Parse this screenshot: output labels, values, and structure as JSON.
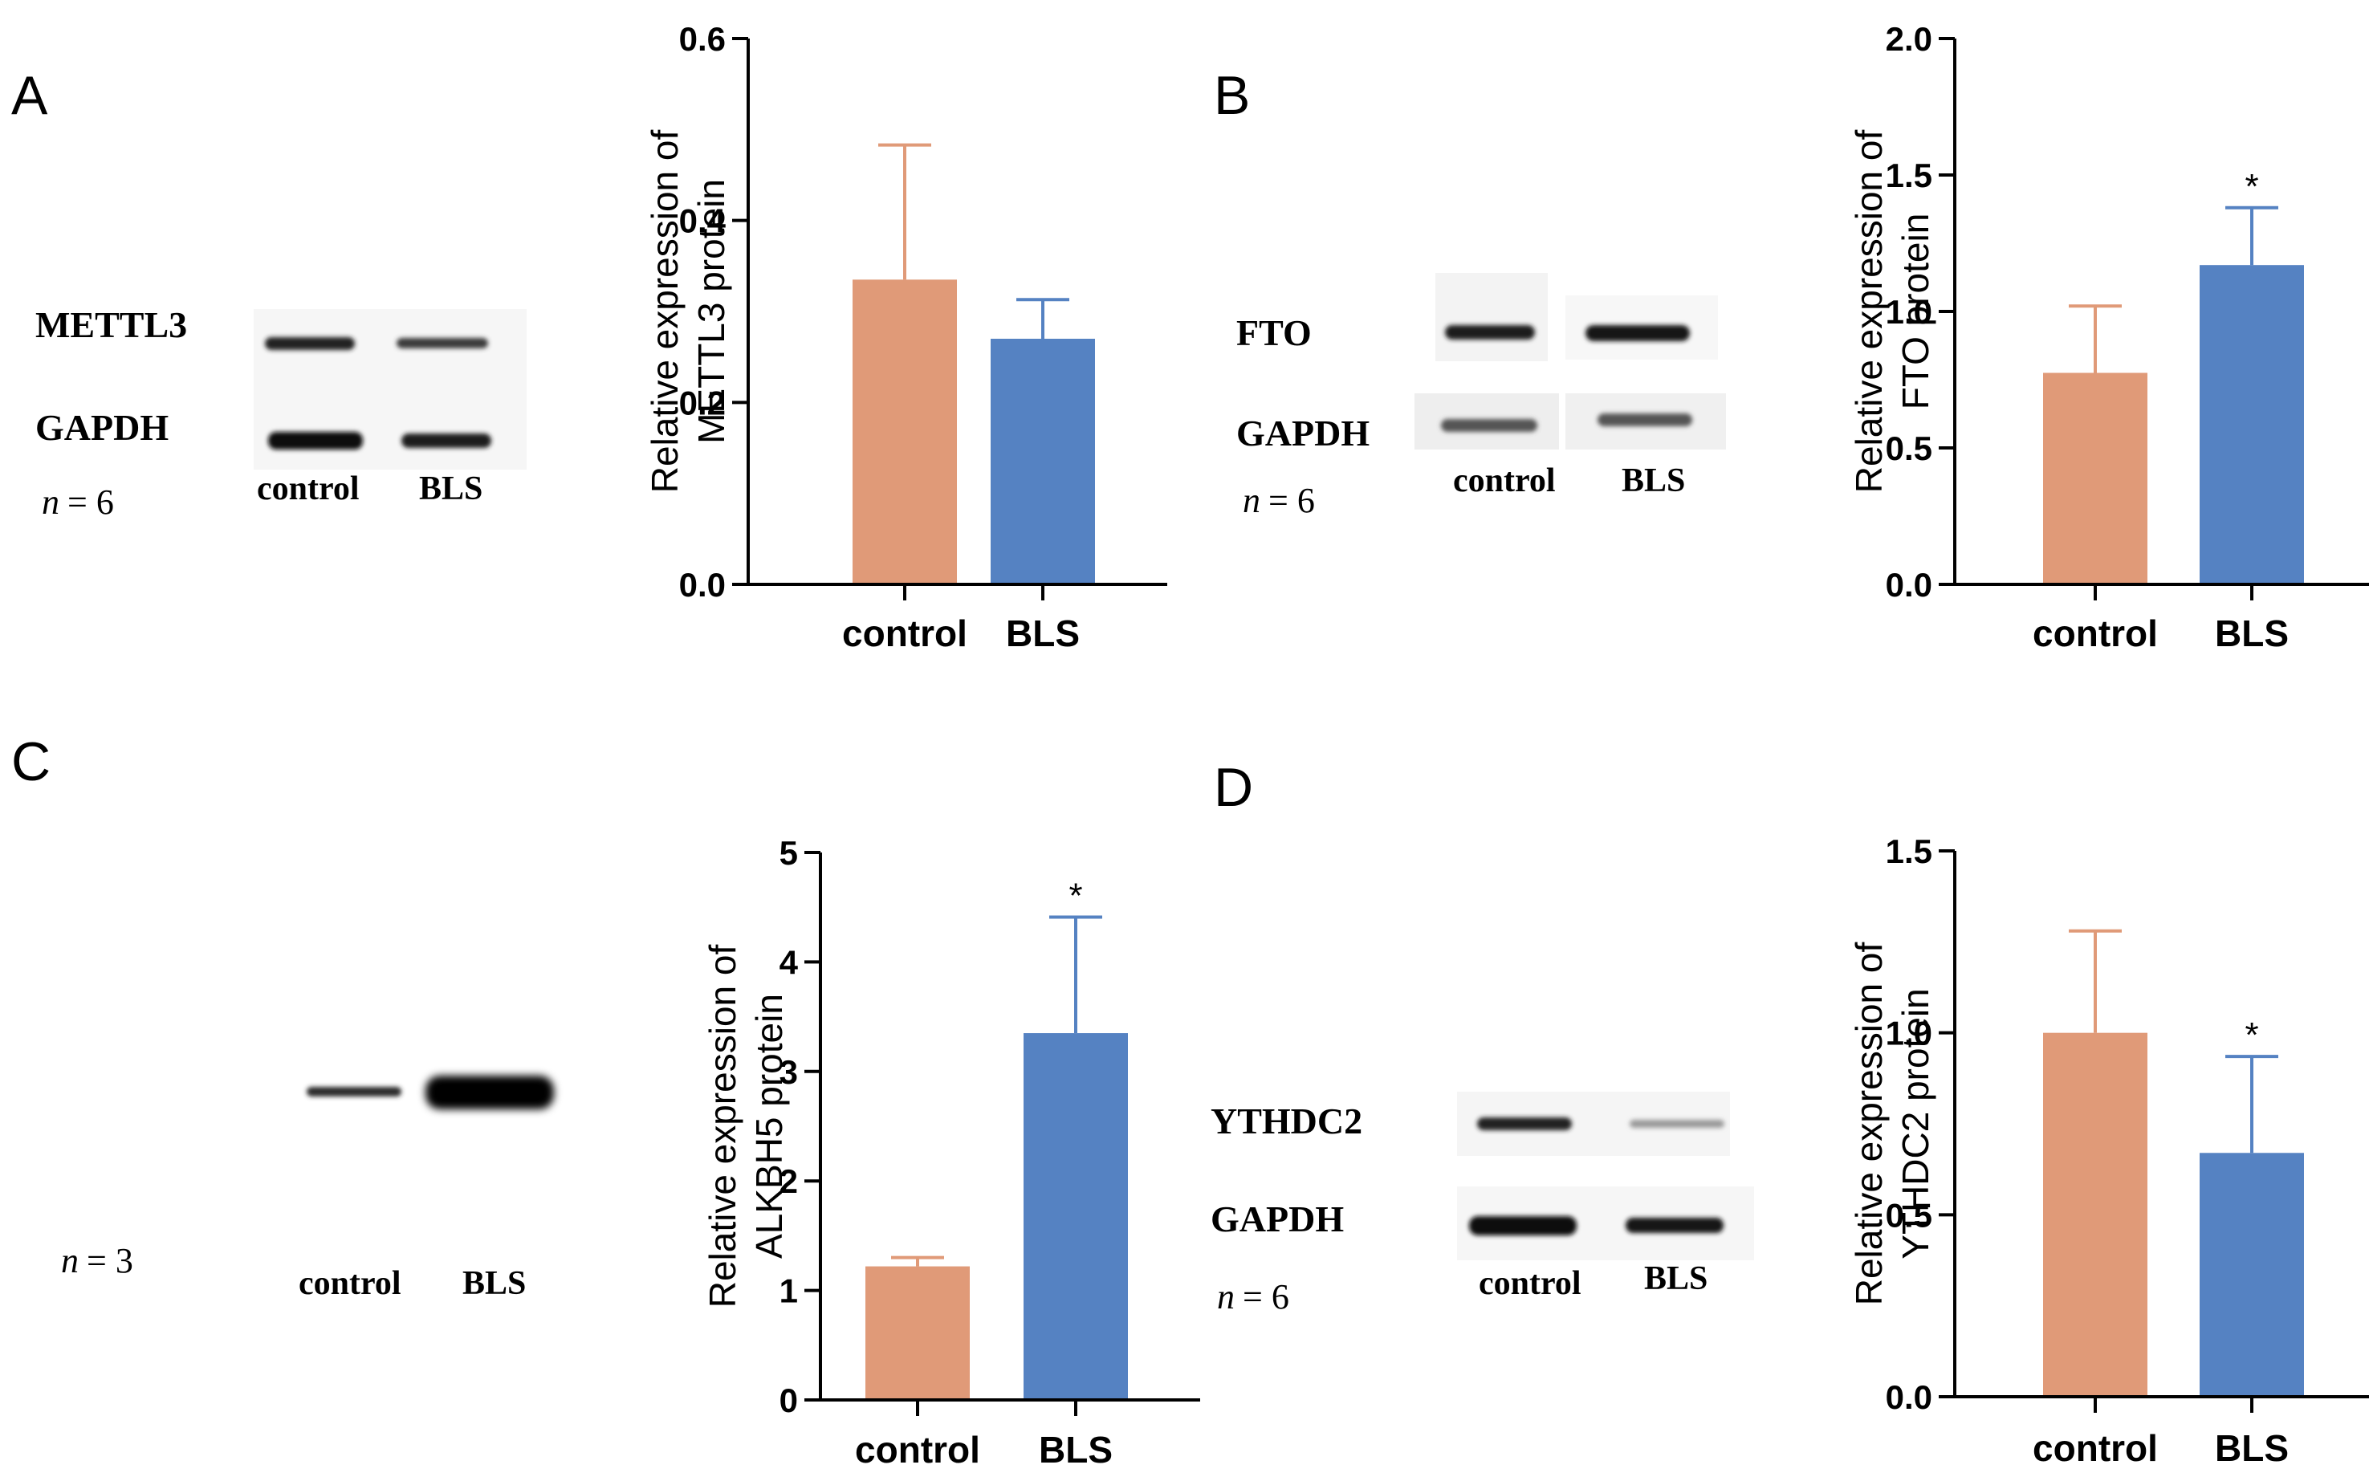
{
  "colors": {
    "control": "#e09a78",
    "bls": "#5582c2",
    "axis": "#000000"
  },
  "blots": [
    {
      "letter": "A",
      "protein_label": "METTL3",
      "loading_label": "GAPDH",
      "n_label": "n",
      "n_value": "= 6",
      "lanes": [
        "control",
        "BLS"
      ]
    },
    {
      "letter": "B",
      "protein_label": "FTO",
      "loading_label": "GAPDH",
      "n_label": "n",
      "n_value": "= 6",
      "lanes": [
        "control",
        "BLS"
      ]
    },
    {
      "letter": "C",
      "protein_label": "",
      "loading_label": "",
      "n_label": "n",
      "n_value": "= 3",
      "lanes": [
        "control",
        "BLS"
      ]
    },
    {
      "letter": "D",
      "protein_label": "YTHDC2",
      "loading_label": "GAPDH",
      "n_label": "n",
      "n_value": "= 6",
      "lanes": [
        "control",
        "BLS"
      ]
    }
  ],
  "chart_data": [
    {
      "type": "bar",
      "panel": "A",
      "categories": [
        "control",
        "BLS"
      ],
      "values": [
        0.335,
        0.27
      ],
      "errors": [
        0.148,
        0.043
      ],
      "significance": [
        "",
        ""
      ],
      "ylabel_line1": "Relative expression of",
      "ylabel_line2": "METTL3 protein",
      "ylim": [
        0,
        0.6
      ],
      "ticks": [
        "0.0",
        "0.2",
        "0.4",
        "0.6"
      ]
    },
    {
      "type": "bar",
      "panel": "B",
      "categories": [
        "control",
        "BLS"
      ],
      "values": [
        0.775,
        1.17
      ],
      "errors": [
        0.245,
        0.21
      ],
      "significance": [
        "",
        "*"
      ],
      "ylabel_line1": "Relative expression of",
      "ylabel_line2": "FTO protein",
      "ylim": [
        0,
        2.0
      ],
      "ticks": [
        "0.0",
        "0.5",
        "1.0",
        "1.5",
        "2.0"
      ]
    },
    {
      "type": "bar",
      "panel": "C",
      "categories": [
        "control",
        "BLS"
      ],
      "values": [
        1.22,
        3.35
      ],
      "errors": [
        0.08,
        1.06
      ],
      "significance": [
        "",
        "*"
      ],
      "ylabel_line1": "Relative expression of",
      "ylabel_line2": "ALKBH5 protein",
      "ylim": [
        0,
        5
      ],
      "ticks": [
        "0",
        "1",
        "2",
        "3",
        "4",
        "5"
      ]
    },
    {
      "type": "bar",
      "panel": "D",
      "categories": [
        "control",
        "BLS"
      ],
      "values": [
        1.0,
        0.67
      ],
      "errors": [
        0.28,
        0.265
      ],
      "significance": [
        "",
        "*"
      ],
      "ylabel_line1": "Relative expression of",
      "ylabel_line2": "YTHDC2 protein",
      "ylim": [
        0,
        1.5
      ],
      "ticks": [
        "0.0",
        "0.5",
        "1.0",
        "1.5"
      ]
    }
  ]
}
